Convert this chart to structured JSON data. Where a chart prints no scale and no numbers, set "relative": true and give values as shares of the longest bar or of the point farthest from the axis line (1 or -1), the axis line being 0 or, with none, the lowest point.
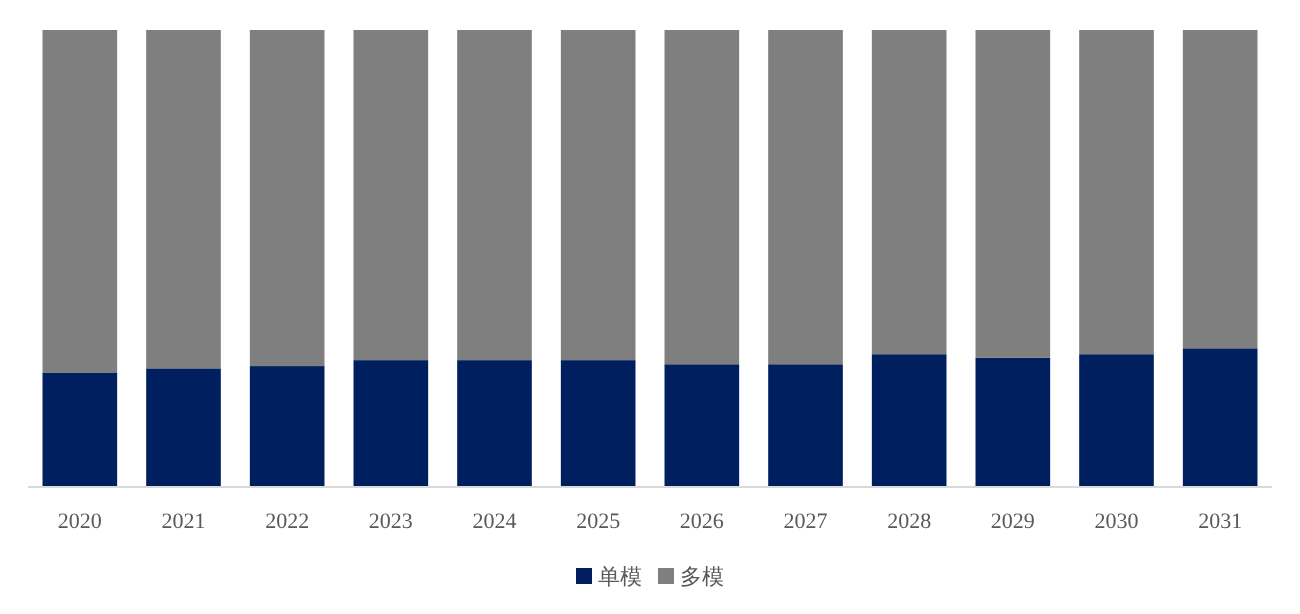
{
  "chart_data": {
    "type": "bar",
    "stacked": true,
    "relative": true,
    "legend": "bottom",
    "categories": [
      "2020",
      "2021",
      "2022",
      "2023",
      "2024",
      "2025",
      "2026",
      "2027",
      "2028",
      "2029",
      "2030",
      "2031"
    ],
    "series": [
      {
        "name": "单模",
        "color": "#001f5f",
        "values": [
          0.249,
          0.258,
          0.263,
          0.276,
          0.276,
          0.276,
          0.267,
          0.267,
          0.289,
          0.281,
          0.289,
          0.302
        ]
      },
      {
        "name": "多模",
        "color": "#7f7f7f",
        "values": [
          0.751,
          0.742,
          0.737,
          0.724,
          0.724,
          0.724,
          0.733,
          0.733,
          0.711,
          0.719,
          0.711,
          0.698
        ]
      }
    ]
  }
}
